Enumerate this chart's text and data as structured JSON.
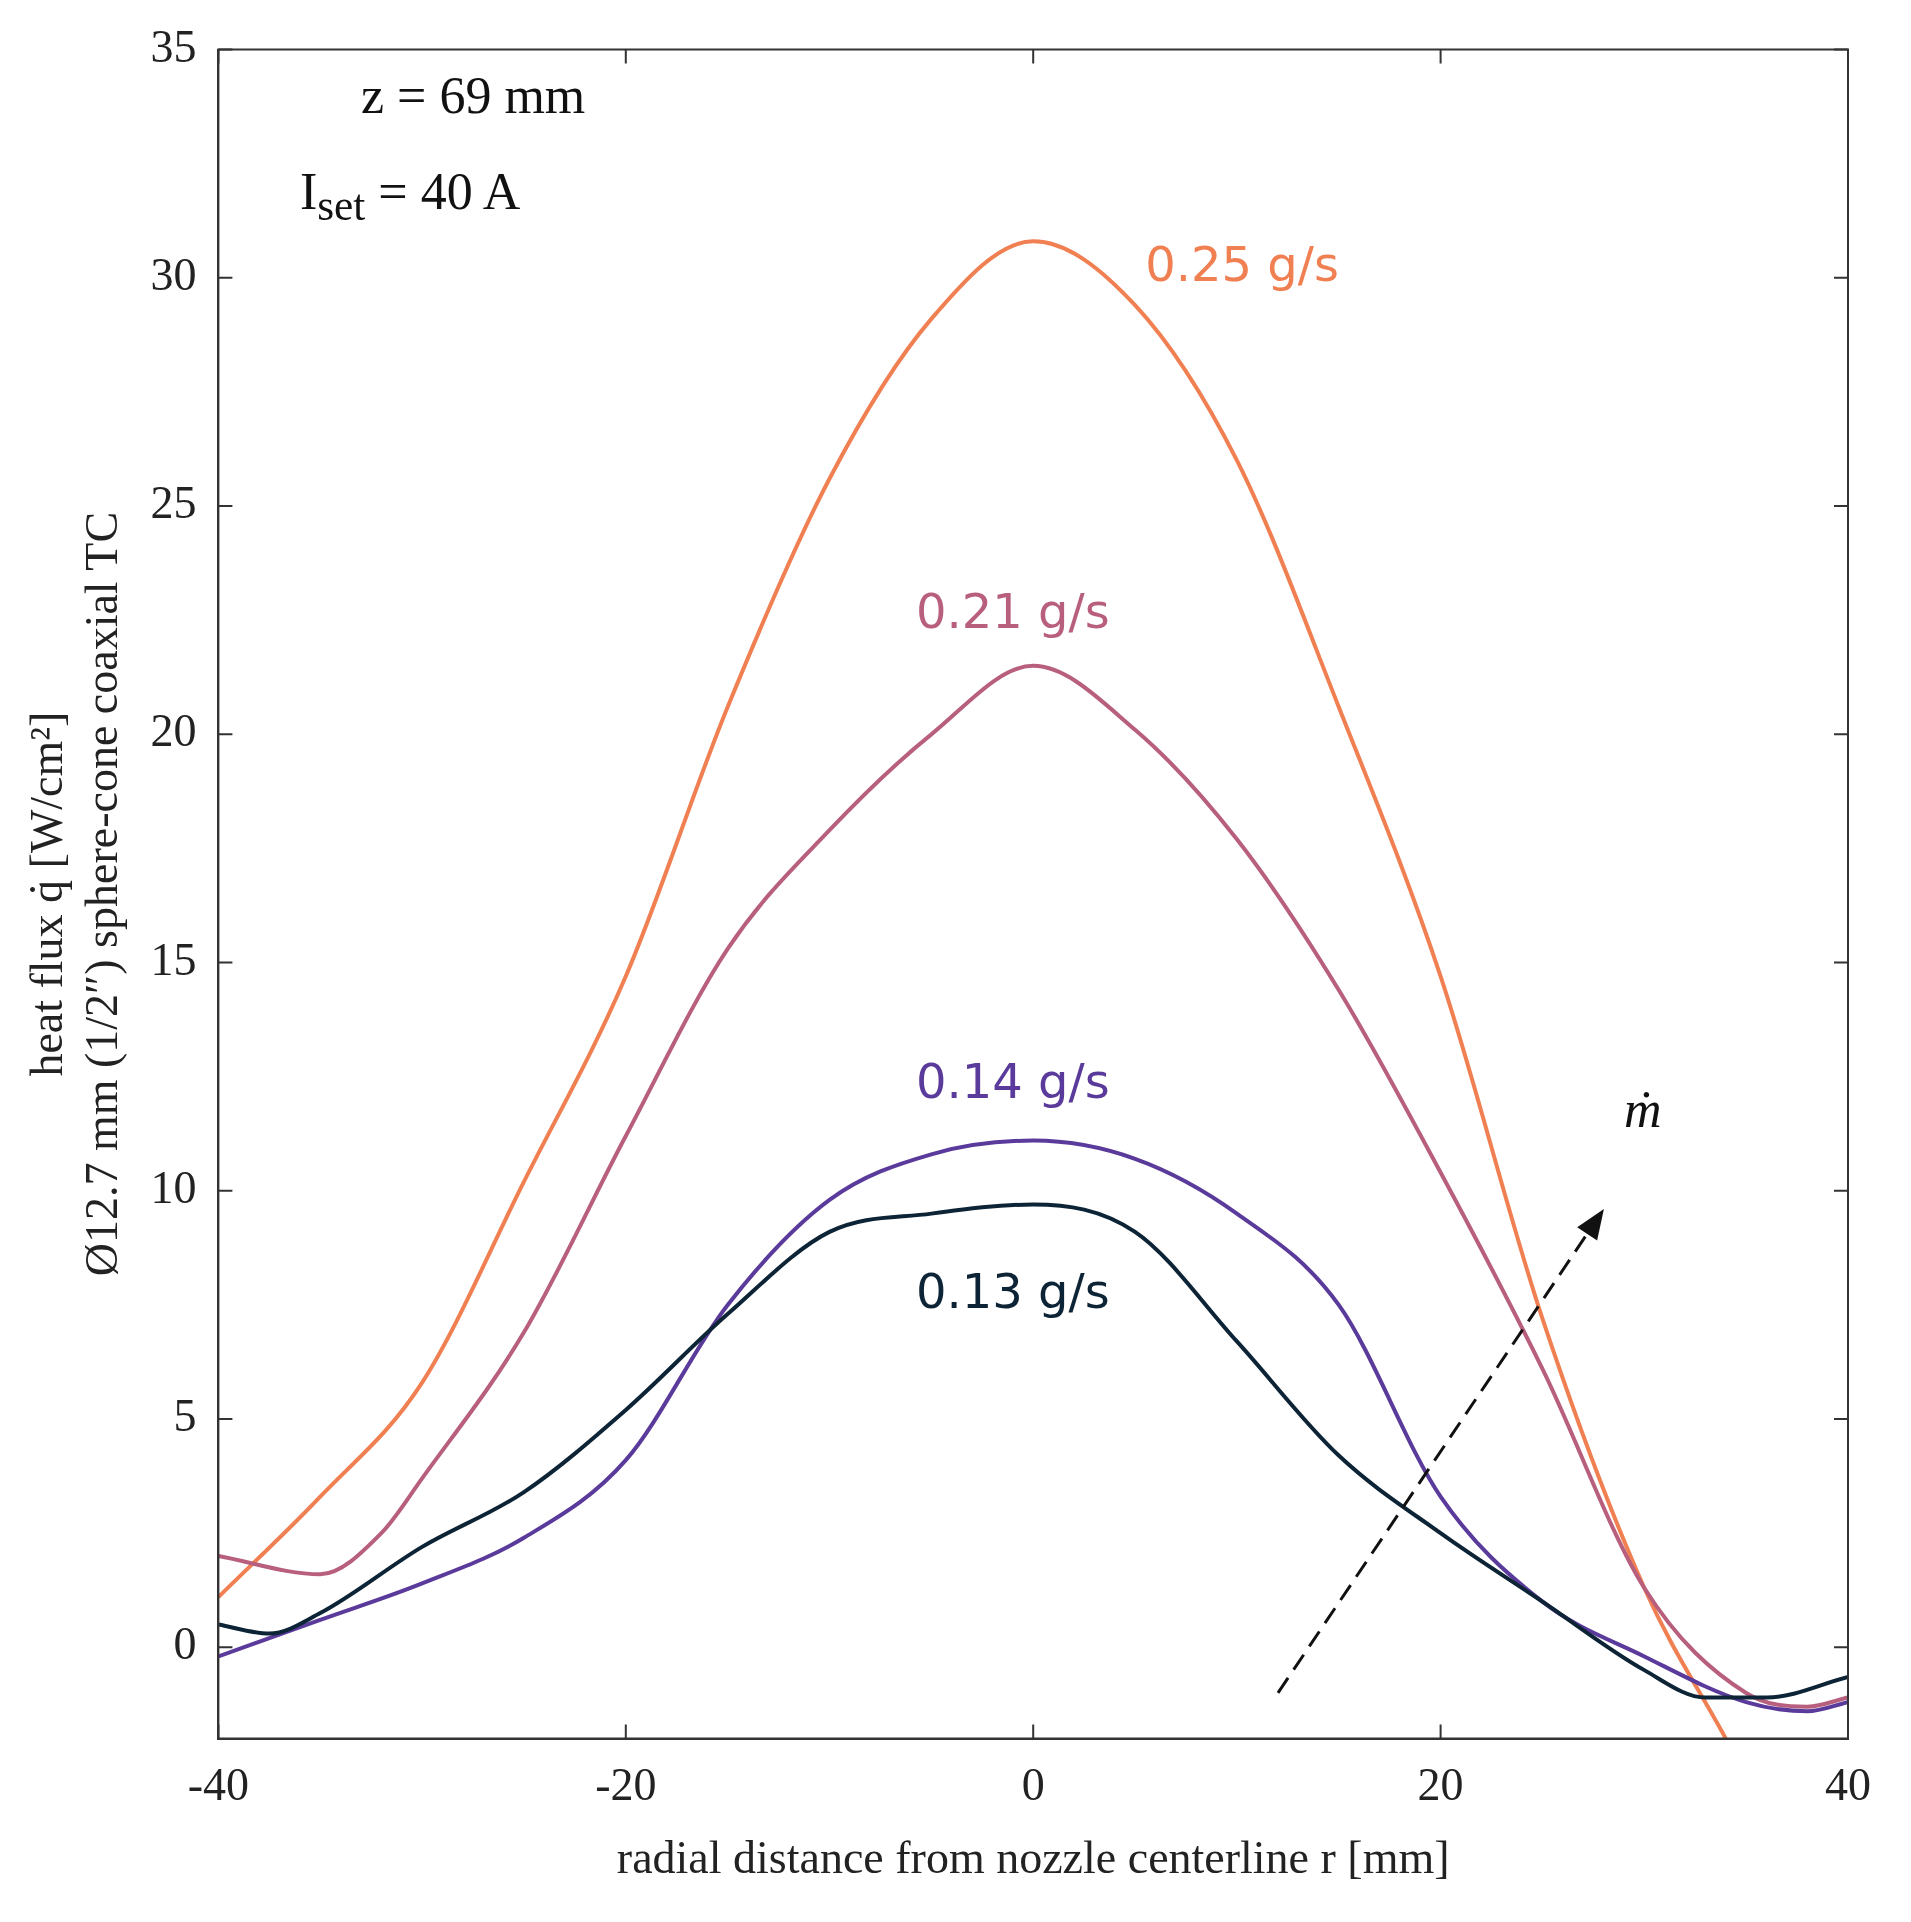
{
  "chart_data": {
    "type": "line",
    "xlabel": "radial distance from nozzle centerline r [mm]",
    "ylabel": "heat flux q̇ [W/cm²]\nØ12.7 mm (1/2″) sphere-cone coaxial TC",
    "annotations": [
      "z = 69 mm",
      "I$_{set}$ = 40 A",
      "ṁ"
    ],
    "xlim": [
      -40,
      40
    ],
    "xticks": [
      -40,
      -20,
      0,
      20,
      40
    ],
    "ylim": [
      -2,
      35
    ],
    "yticks": [
      0,
      5,
      10,
      15,
      20,
      25,
      30,
      35
    ],
    "grid": false,
    "legend": false,
    "marker": "none",
    "line_style": "solid",
    "series": [
      {
        "name": "0.13 g/s",
        "color": "#0d2436",
        "x": [
          -40,
          -37.5,
          -35,
          -30,
          -25,
          -20,
          -15,
          -10,
          -5,
          0,
          5,
          10,
          15,
          20,
          25,
          30,
          33,
          36,
          40
        ],
        "values": [
          0.5,
          0.3,
          0.75,
          2.2,
          3.4,
          5.2,
          7.3,
          9.1,
          9.5,
          9.7,
          9.1,
          6.7,
          4.2,
          2.5,
          1.0,
          -0.5,
          -1.1,
          -1.1,
          -0.65
        ]
      },
      {
        "name": "0.14 g/s",
        "color": "#5a3a9a",
        "x": [
          -40,
          -35,
          -30,
          -25,
          -20,
          -15,
          -10,
          -5,
          0,
          5,
          10,
          15,
          20,
          25,
          30,
          35,
          38,
          40
        ],
        "values": [
          -0.2,
          0.6,
          1.4,
          2.4,
          4.1,
          7.5,
          9.8,
          10.8,
          11.1,
          10.7,
          9.5,
          7.5,
          3.3,
          1.0,
          -0.2,
          -1.2,
          -1.4,
          -1.2
        ]
      },
      {
        "name": "0.21 g/s",
        "color": "#b85f7e",
        "x": [
          -40,
          -35,
          -32,
          -30,
          -25,
          -20,
          -15,
          -10,
          -5,
          0,
          5,
          10,
          15,
          20,
          25,
          30,
          35,
          38,
          40
        ],
        "values": [
          2.0,
          1.6,
          2.5,
          3.7,
          6.9,
          11.2,
          15.3,
          17.9,
          20.0,
          21.5,
          20.1,
          17.7,
          14.4,
          10.4,
          6.1,
          1.3,
          -1.0,
          -1.3,
          -1.1
        ]
      },
      {
        "name": "0.25 g/s",
        "color": "#f07f52",
        "x": [
          -40,
          -35,
          -30,
          -25,
          -20,
          -15,
          -10,
          -5,
          0,
          5,
          10,
          15,
          20,
          25,
          30,
          34
        ],
        "values": [
          1.1,
          3.3,
          5.8,
          10.2,
          14.7,
          20.6,
          25.6,
          29.1,
          30.8,
          29.4,
          26.0,
          20.6,
          14.7,
          7.2,
          1.3,
          -2.0
        ]
      }
    ]
  }
}
